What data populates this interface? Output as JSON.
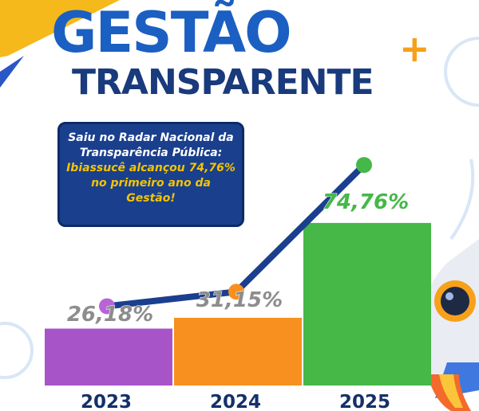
{
  "header": {
    "title_line1": "GESTÃO",
    "title_plus": "+",
    "title_line2": "TRANSPARENTE"
  },
  "info": {
    "line1": "Saiu no Radar Nacional da",
    "line2": "Transparência Pública:",
    "line3": "Ibiassucê alcançou 74,76%",
    "line4": "no primeiro ano da Gestão!"
  },
  "colors": {
    "title_blue": "#1b5fc2",
    "title_navy": "#193a7c",
    "accent_orange": "#f6a01a",
    "info_bg": "#1a3f8d",
    "info_highlight": "#f5c400",
    "line": "#1b3f8f"
  },
  "decorations": [
    "rocket-icon"
  ],
  "chart_data": {
    "type": "bar",
    "title": "",
    "xlabel": "",
    "ylabel": "",
    "ylim": [
      0,
      100
    ],
    "grid": false,
    "categories": [
      "2023",
      "2024",
      "2025"
    ],
    "values": [
      26.18,
      31.15,
      74.76
    ],
    "data_labels": [
      "26,18%",
      "31,15%",
      "74,76%"
    ],
    "bar_colors": [
      "#a754c9",
      "#f7901e",
      "#45b848"
    ],
    "label_colors": [
      "#8d8d8d",
      "#8d8d8d",
      "#45b848"
    ],
    "overlay_line": {
      "type": "line",
      "values": [
        26.18,
        31.15,
        74.76
      ],
      "marker_colors": [
        "#b765d6",
        "#f7901e",
        "#45b848"
      ]
    }
  }
}
